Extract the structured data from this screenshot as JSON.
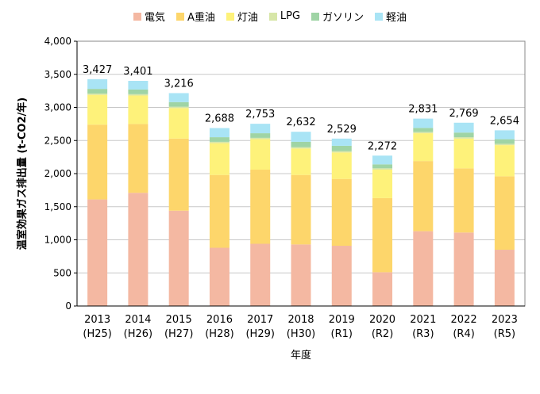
{
  "chart_data": {
    "type": "bar",
    "stacked": true,
    "xlabel": "年度",
    "ylabel": "温室効果ガス排出量 (t-CO2/年)",
    "ylim": [
      0,
      4000
    ],
    "yticks": [
      0,
      500,
      1000,
      1500,
      2000,
      2500,
      3000,
      3500,
      4000
    ],
    "ytick_labels": [
      "0",
      "500",
      "1,000",
      "1,500",
      "2,000",
      "2,500",
      "3,000",
      "3,500",
      "4,000"
    ],
    "categories": [
      "2013",
      "2014",
      "2015",
      "2016",
      "2017",
      "2018",
      "2019",
      "2020",
      "2021",
      "2022",
      "2023"
    ],
    "category_sublabels": [
      "(H25)",
      "(H26)",
      "(H27)",
      "(H28)",
      "(H29)",
      "(H30)",
      "(R1)",
      "(R2)",
      "(R3)",
      "(R4)",
      "(R5)"
    ],
    "grid": true,
    "legend_position": "top",
    "series": [
      {
        "name": "電気",
        "color": "#f4b8a2",
        "values": [
          1610,
          1710,
          1440,
          880,
          940,
          930,
          910,
          510,
          1130,
          1110,
          850
        ]
      },
      {
        "name": "A重油",
        "color": "#fdd66b",
        "values": [
          1130,
          1040,
          1090,
          1100,
          1120,
          1050,
          1010,
          1120,
          1060,
          970,
          1110
        ]
      },
      {
        "name": "灯油",
        "color": "#fef27a",
        "values": [
          450,
          430,
          460,
          480,
          460,
          400,
          400,
          430,
          420,
          450,
          470
        ]
      },
      {
        "name": "LPG",
        "color": "#d7e6a8",
        "values": [
          20,
          20,
          20,
          20,
          20,
          20,
          20,
          20,
          20,
          20,
          20
        ]
      },
      {
        "name": "ガソリン",
        "color": "#9fd4a5",
        "values": [
          70,
          70,
          70,
          70,
          70,
          80,
          80,
          60,
          60,
          70,
          70
        ]
      },
      {
        "name": "軽油",
        "color": "#a9e4f5",
        "values": [
          147,
          131,
          136,
          138,
          143,
          152,
          109,
          132,
          141,
          149,
          134
        ]
      }
    ],
    "totals": [
      3427,
      3401,
      3216,
      2688,
      2753,
      2632,
      2529,
      2272,
      2831,
      2769,
      2654
    ],
    "total_labels": [
      "3,427",
      "3,401",
      "3,216",
      "2,688",
      "2,753",
      "2,632",
      "2,529",
      "2,272",
      "2,831",
      "2,769",
      "2,654"
    ]
  }
}
